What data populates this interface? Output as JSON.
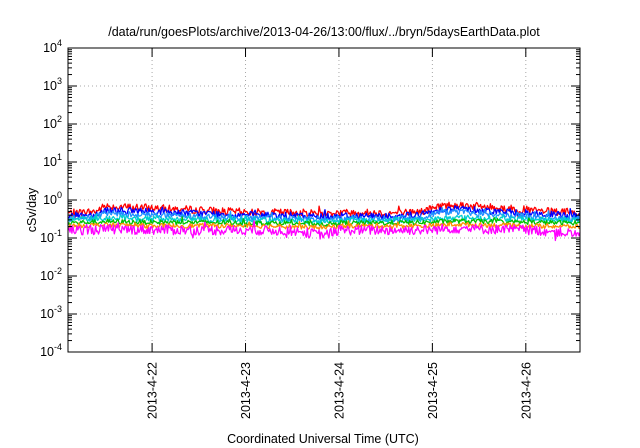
{
  "chart_data": {
    "type": "line",
    "title": "/data/run/goesPlots/archive/2013-04-26/13:00/flux/../bryn/5daysEarthData.plot",
    "xlabel": "Coordinated Universal Time (UTC)",
    "ylabel": "cSv/day",
    "yscale": "log",
    "ylim_exponents": [
      -4,
      4
    ],
    "y_tick_labels": [
      {
        "base": "10",
        "exp": "-4"
      },
      {
        "base": "10",
        "exp": "-3"
      },
      {
        "base": "10",
        "exp": "-2"
      },
      {
        "base": "10",
        "exp": "-1"
      },
      {
        "base": "10",
        "exp": "0"
      },
      {
        "base": "10",
        "exp": "1"
      },
      {
        "base": "10",
        "exp": "2"
      },
      {
        "base": "10",
        "exp": "3"
      },
      {
        "base": "10",
        "exp": "4"
      }
    ],
    "xlim": [
      21.1,
      26.58
    ],
    "x_ticks": [
      22,
      23,
      24,
      25,
      26
    ],
    "x_tick_labels": [
      "2013-4-22",
      "2013-4-23",
      "2013-4-24",
      "2013-4-25",
      "2013-4-26"
    ],
    "grid": true,
    "series": [
      {
        "color": "#ff0000",
        "noise": 0.1,
        "x": [
          21.1,
          21.4,
          21.5,
          21.7,
          22.0,
          22.2,
          22.5,
          22.8,
          23.1,
          23.4,
          23.7,
          23.85,
          24.0,
          24.3,
          24.6,
          24.9,
          25.1,
          25.3,
          25.6,
          25.9,
          26.2,
          26.58
        ],
        "y": [
          0.45,
          0.5,
          0.7,
          0.65,
          0.62,
          0.58,
          0.55,
          0.5,
          0.48,
          0.47,
          0.46,
          0.45,
          0.47,
          0.46,
          0.45,
          0.5,
          0.72,
          0.75,
          0.65,
          0.58,
          0.5,
          0.45
        ]
      },
      {
        "color": "#0000ff",
        "noise": 0.09,
        "x": [
          21.1,
          21.4,
          21.5,
          21.7,
          22.0,
          22.2,
          22.5,
          22.8,
          23.1,
          23.4,
          23.7,
          23.85,
          24.0,
          24.3,
          24.6,
          24.9,
          25.1,
          25.3,
          25.6,
          25.9,
          26.2,
          26.58
        ],
        "y": [
          0.38,
          0.42,
          0.55,
          0.52,
          0.5,
          0.47,
          0.45,
          0.42,
          0.4,
          0.39,
          0.38,
          0.37,
          0.39,
          0.38,
          0.38,
          0.42,
          0.58,
          0.6,
          0.52,
          0.47,
          0.42,
          0.38
        ]
      },
      {
        "color": "#1e90ff",
        "noise": 0.08,
        "x": [
          21.1,
          21.4,
          21.5,
          21.7,
          22.0,
          22.2,
          22.5,
          22.8,
          23.1,
          23.4,
          23.7,
          23.85,
          24.0,
          24.3,
          24.6,
          24.9,
          25.1,
          25.3,
          25.6,
          25.9,
          26.2,
          26.58
        ],
        "y": [
          0.32,
          0.35,
          0.45,
          0.43,
          0.41,
          0.39,
          0.37,
          0.35,
          0.34,
          0.33,
          0.32,
          0.31,
          0.33,
          0.32,
          0.32,
          0.35,
          0.47,
          0.48,
          0.43,
          0.39,
          0.35,
          0.32
        ]
      },
      {
        "color": "#00ced1",
        "noise": 0.07,
        "x": [
          21.1,
          21.5,
          22.0,
          22.5,
          23.0,
          23.5,
          23.85,
          24.0,
          24.5,
          25.0,
          25.2,
          25.6,
          26.0,
          26.58
        ],
        "y": [
          0.3,
          0.34,
          0.32,
          0.31,
          0.3,
          0.29,
          0.27,
          0.29,
          0.29,
          0.31,
          0.35,
          0.33,
          0.31,
          0.3
        ]
      },
      {
        "color": "#00c000",
        "noise": 0.06,
        "x": [
          21.1,
          21.5,
          22.0,
          22.5,
          23.0,
          23.5,
          23.85,
          24.0,
          24.5,
          25.0,
          25.2,
          25.6,
          26.0,
          26.58
        ],
        "y": [
          0.25,
          0.27,
          0.26,
          0.26,
          0.25,
          0.25,
          0.23,
          0.25,
          0.25,
          0.26,
          0.28,
          0.27,
          0.26,
          0.25
        ]
      },
      {
        "color": "#ff8c00",
        "noise": 0.06,
        "x": [
          21.1,
          21.5,
          22.0,
          22.5,
          23.0,
          23.5,
          23.85,
          24.0,
          24.5,
          25.0,
          25.2,
          25.6,
          26.0,
          26.58
        ],
        "y": [
          0.21,
          0.22,
          0.21,
          0.21,
          0.21,
          0.2,
          0.19,
          0.21,
          0.21,
          0.21,
          0.23,
          0.22,
          0.21,
          0.2
        ]
      },
      {
        "color": "#ff00ff",
        "noise": 0.13,
        "x": [
          21.1,
          21.5,
          22.0,
          22.5,
          23.0,
          23.5,
          23.85,
          24.0,
          24.5,
          25.0,
          25.2,
          25.6,
          26.0,
          26.4,
          26.58
        ],
        "y": [
          0.16,
          0.17,
          0.165,
          0.16,
          0.16,
          0.155,
          0.12,
          0.16,
          0.16,
          0.165,
          0.18,
          0.17,
          0.165,
          0.14,
          0.12
        ]
      }
    ]
  }
}
